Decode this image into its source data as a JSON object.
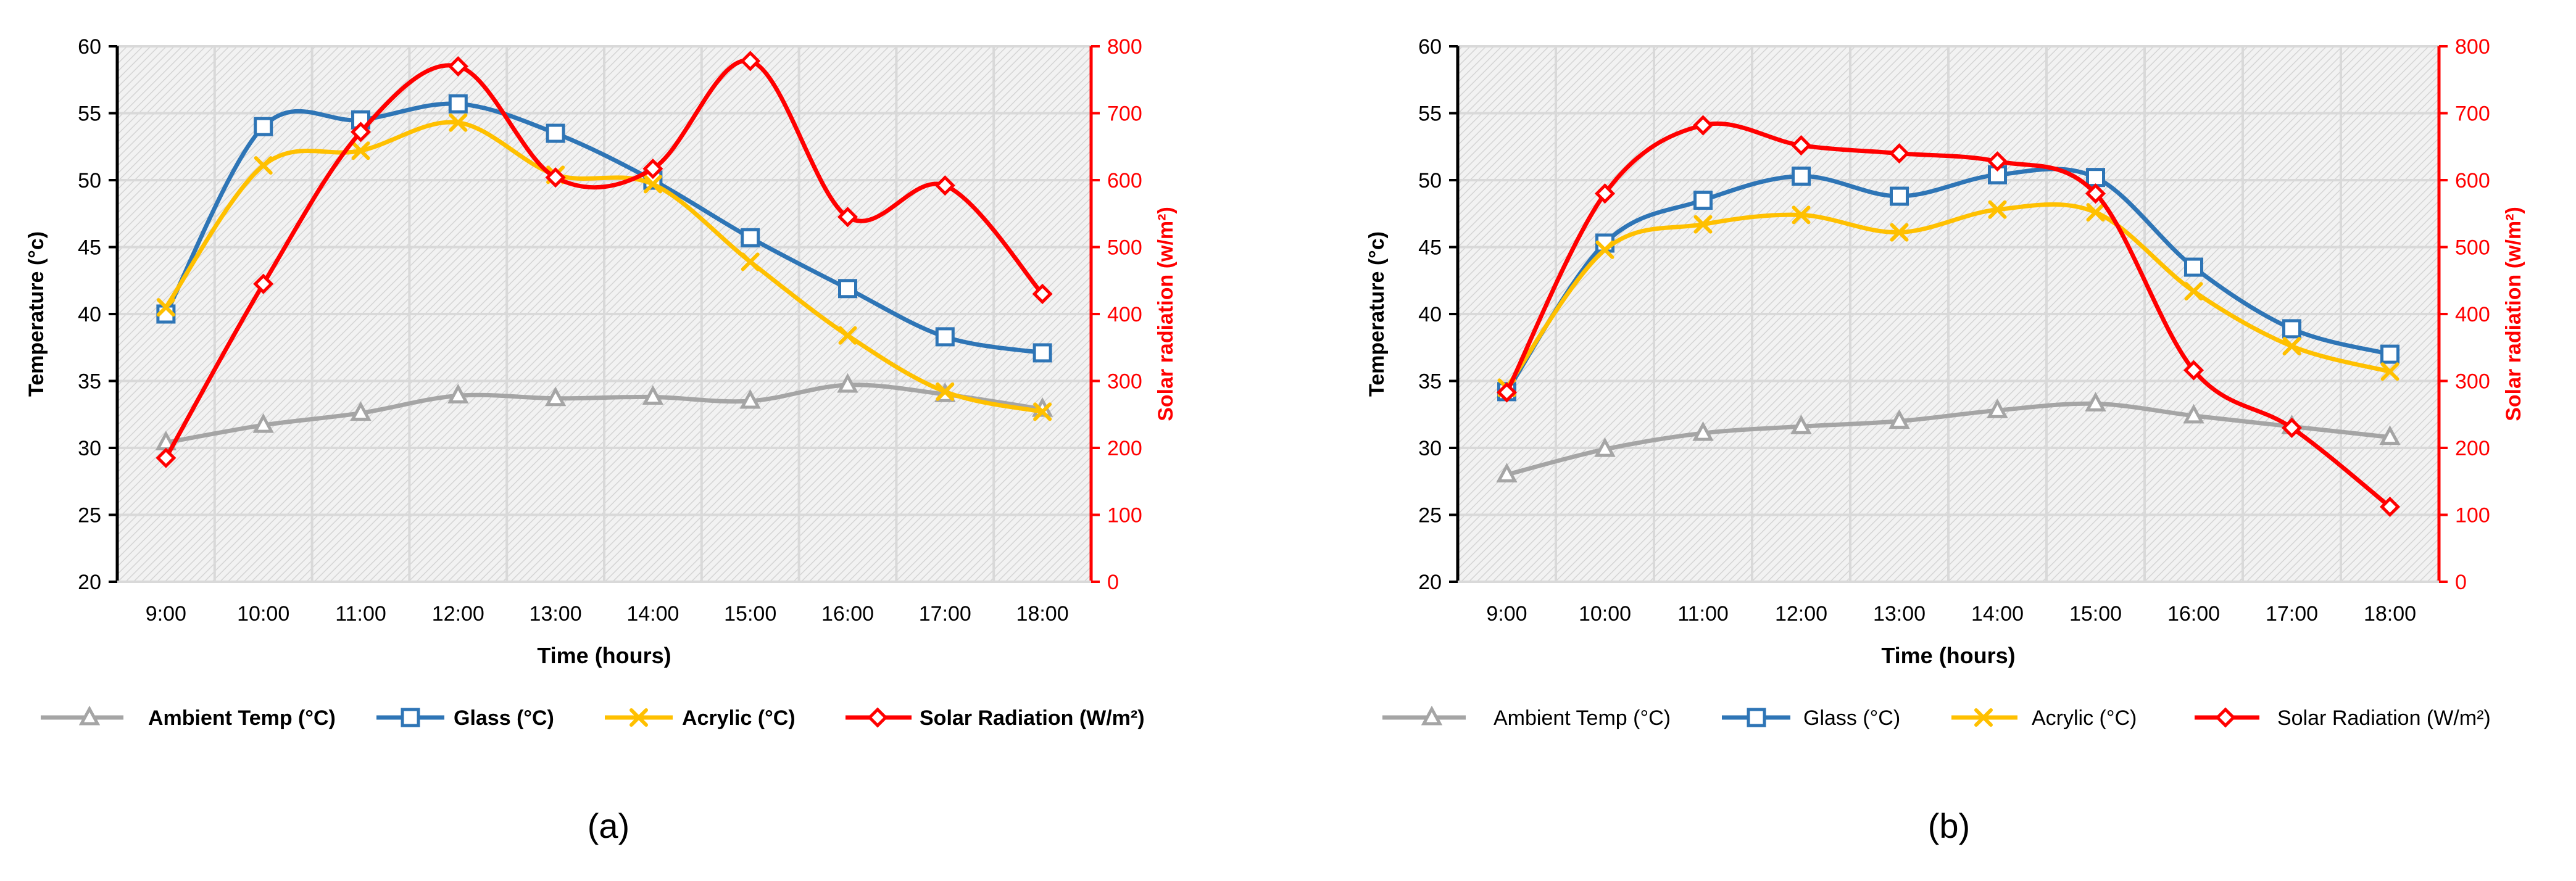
{
  "colors": {
    "ambient": "#A5A5A5",
    "glass": "#2E75B6",
    "acrylic": "#FFC000",
    "solar": "#FF0000",
    "axis": "#000000",
    "grid": "#D9D9D9"
  },
  "chart_data": [
    {
      "type": "line",
      "panel_label": "(a)",
      "xlabel": "Time (hours)",
      "ylabel": "Temperature (°c)",
      "y2label": "Solar radiation (w/m²)",
      "categories": [
        "9:00",
        "10:00",
        "11:00",
        "12:00",
        "13:00",
        "14:00",
        "15:00",
        "16:00",
        "17:00",
        "18:00"
      ],
      "ylim": [
        20,
        60
      ],
      "yticks": [
        "20",
        "25",
        "30",
        "35",
        "40",
        "45",
        "50",
        "55",
        "60"
      ],
      "y2lim": [
        0,
        800
      ],
      "y2ticks": [
        "0",
        "100",
        "200",
        "300",
        "400",
        "500",
        "600",
        "700",
        "800"
      ],
      "grid": true,
      "legend_position": "bottom",
      "legend_bold": true,
      "series": [
        {
          "name": "Ambient Temp (°C)",
          "marker": "triangle",
          "color": "#A5A5A5",
          "axis": "left",
          "values": [
            30.4,
            31.7,
            32.6,
            33.9,
            33.7,
            33.8,
            33.5,
            34.7,
            34.0,
            32.9
          ]
        },
        {
          "name": "Glass (°C)",
          "marker": "square",
          "color": "#2E75B6",
          "axis": "left",
          "values": [
            40.0,
            54.0,
            54.5,
            55.7,
            53.5,
            50.0,
            45.7,
            41.9,
            38.3,
            37.1
          ]
        },
        {
          "name": "Acrylic (°C)",
          "marker": "x",
          "color": "#FFC000",
          "axis": "left",
          "values": [
            40.5,
            51.1,
            52.2,
            54.3,
            50.4,
            49.7,
            43.9,
            38.4,
            34.2,
            32.7
          ]
        },
        {
          "name": "Solar Radiation (W/m²)",
          "marker": "diamond",
          "color": "#FF0000",
          "axis": "right",
          "values": [
            185,
            445,
            672,
            770,
            604,
            617,
            778,
            545,
            592,
            430
          ]
        }
      ]
    },
    {
      "type": "line",
      "panel_label": "(b)",
      "xlabel": "Time (hours)",
      "ylabel": "Temperature (°c)",
      "y2label": "Solar radiation (w/m²)",
      "categories": [
        "9:00",
        "10:00",
        "11:00",
        "12:00",
        "13:00",
        "14:00",
        "15:00",
        "16:00",
        "17:00",
        "18:00"
      ],
      "ylim": [
        20,
        60
      ],
      "yticks": [
        "20",
        "25",
        "30",
        "35",
        "40",
        "45",
        "50",
        "55",
        "60"
      ],
      "y2lim": [
        0,
        800
      ],
      "y2ticks": [
        "0",
        "100",
        "200",
        "300",
        "400",
        "500",
        "600",
        "700",
        "800"
      ],
      "grid": true,
      "legend_position": "bottom",
      "legend_bold": false,
      "series": [
        {
          "name": "Ambient Temp (°C)",
          "marker": "triangle",
          "color": "#A5A5A5",
          "axis": "left",
          "values": [
            28.0,
            29.9,
            31.1,
            31.6,
            32.0,
            32.8,
            33.3,
            32.4,
            31.6,
            30.8
          ]
        },
        {
          "name": "Glass (°C)",
          "marker": "square",
          "color": "#2E75B6",
          "axis": "left",
          "values": [
            34.2,
            45.3,
            48.5,
            50.3,
            48.8,
            50.4,
            50.2,
            43.5,
            38.9,
            37.0
          ]
        },
        {
          "name": "Acrylic (°C)",
          "marker": "x",
          "color": "#FFC000",
          "axis": "left",
          "values": [
            34.5,
            44.8,
            46.7,
            47.4,
            46.1,
            47.8,
            47.6,
            41.7,
            37.6,
            35.7
          ]
        },
        {
          "name": "Solar Radiation (W/m²)",
          "marker": "diamond",
          "color": "#FF0000",
          "axis": "right",
          "values": [
            283,
            580,
            682,
            652,
            640,
            628,
            580,
            316,
            230,
            112
          ]
        }
      ]
    }
  ]
}
